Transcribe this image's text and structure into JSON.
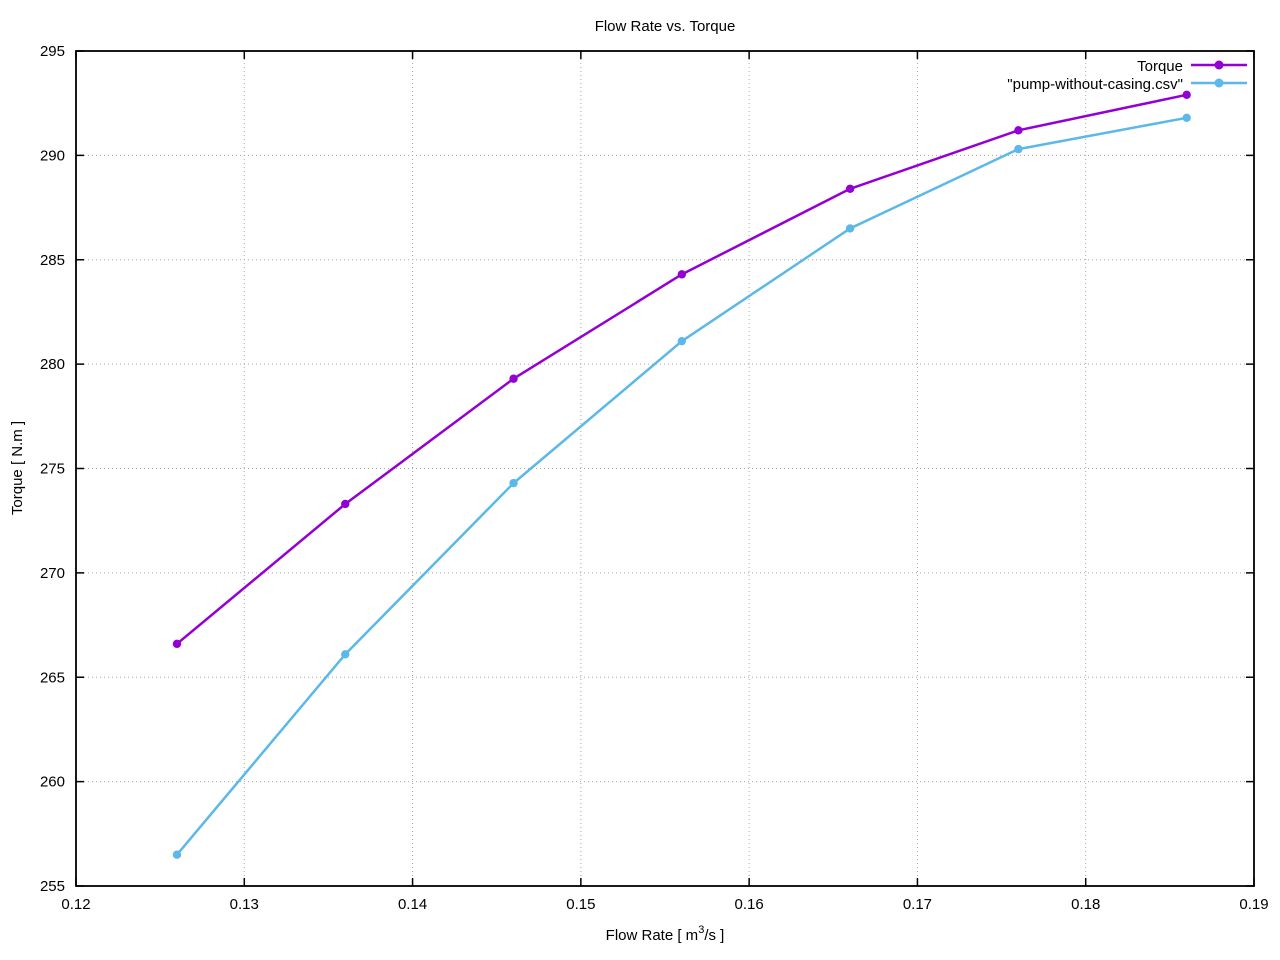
{
  "chart_data": {
    "type": "line",
    "title": "Flow Rate vs. Torque",
    "xlabel": "Flow Rate [ m^3/s ]",
    "xlabel_parts": {
      "pre": "Flow Rate [ m",
      "sup": "3",
      "post": "/s ]"
    },
    "ylabel": "Torque [ N.m ]",
    "xlim": [
      0.12,
      0.19
    ],
    "ylim": [
      255,
      295
    ],
    "xticks": [
      0.12,
      0.13,
      0.14,
      0.15,
      0.16,
      0.17,
      0.18,
      0.19
    ],
    "xtick_labels": [
      "0.12",
      "0.13",
      "0.14",
      "0.15",
      "0.16",
      "0.17",
      "0.18",
      "0.19"
    ],
    "yticks": [
      255,
      260,
      265,
      270,
      275,
      280,
      285,
      290,
      295
    ],
    "ytick_labels": [
      "255",
      "260",
      "265",
      "270",
      "275",
      "280",
      "285",
      "290",
      "295"
    ],
    "grid": true,
    "legend_position": "top-right-inside",
    "x": [
      0.126,
      0.136,
      0.146,
      0.156,
      0.166,
      0.176,
      0.186
    ],
    "series": [
      {
        "name": "Torque",
        "color": "#9400d3",
        "values": [
          266.6,
          273.3,
          279.3,
          284.3,
          288.4,
          291.2,
          292.9
        ]
      },
      {
        "name": "\"pump-without-casing.csv\"",
        "color": "#5cb8e8",
        "values": [
          256.5,
          266.1,
          274.3,
          281.1,
          286.5,
          290.3,
          291.8
        ]
      }
    ],
    "colors": {
      "grid": "#a8a8a8",
      "axis": "#000000",
      "background": "#ffffff"
    }
  }
}
